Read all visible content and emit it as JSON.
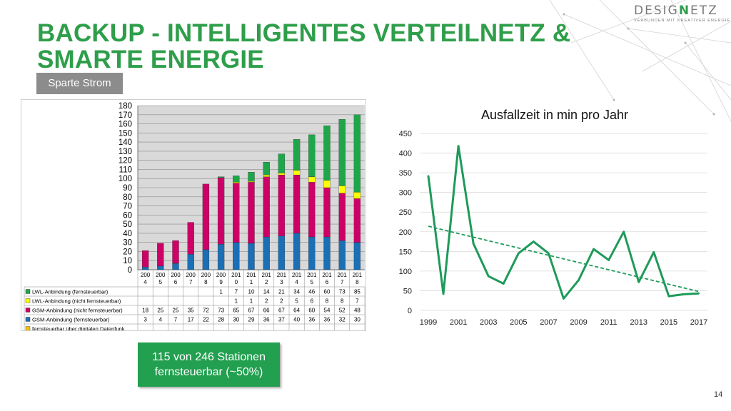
{
  "title_line1": "BACKUP - INTELLIGENTES VERTEILNETZ &",
  "title_line2": "SMARTE ENERGIE",
  "badge": "Sparte Strom",
  "logo": {
    "pre": "DESIG",
    "accent": "N",
    "post": "ETZ",
    "tagline": "VERBUNDEN MIT KREATIVER ENERGIE"
  },
  "callout_line1": "115 von 246 Stationen",
  "callout_line2": "fernsteuerbar (~50%)",
  "page_number": "14",
  "colors": {
    "title": "#2e9e4a",
    "lwl_fern": "#1fa64a",
    "lwl_nicht": "#ffff00",
    "gsm_nicht": "#cc0066",
    "gsm_fern": "#1a6fb5",
    "datenfunk": "#f2c300",
    "line": "#1e9a5a"
  },
  "chart_data": [
    {
      "type": "bar",
      "stacked": true,
      "categories": [
        [
          "200",
          "4"
        ],
        [
          "200",
          "5"
        ],
        [
          "200",
          "6"
        ],
        [
          "200",
          "7"
        ],
        [
          "200",
          "8"
        ],
        [
          "200",
          "9"
        ],
        [
          "201",
          "0"
        ],
        [
          "201",
          "1"
        ],
        [
          "201",
          "2"
        ],
        [
          "201",
          "3"
        ],
        [
          "201",
          "4"
        ],
        [
          "201",
          "5"
        ],
        [
          "201",
          "6"
        ],
        [
          "201",
          "7"
        ],
        [
          "201",
          "8"
        ]
      ],
      "ylim": [
        0,
        180
      ],
      "yticks": [
        0,
        10,
        20,
        30,
        40,
        50,
        60,
        70,
        80,
        90,
        100,
        110,
        120,
        130,
        140,
        150,
        160,
        170,
        180
      ],
      "grid": true,
      "legend": "table-bottom",
      "series": [
        {
          "name": "LWL-Anbindung (fernsteuerbar)",
          "color": "#1fa64a",
          "values": [
            null,
            null,
            null,
            null,
            null,
            1,
            7,
            10,
            14,
            21,
            34,
            46,
            60,
            73,
            85
          ]
        },
        {
          "name": "LWL-Anbindung (nicht fernsteuerbar)",
          "color": "#ffff00",
          "values": [
            null,
            null,
            null,
            null,
            null,
            null,
            1,
            1,
            2,
            2,
            5,
            6,
            8,
            8,
            7
          ]
        },
        {
          "name": "GSM-Anbindung (nicht fernsteuerbar)",
          "color": "#cc0066",
          "values": [
            18,
            25,
            25,
            35,
            72,
            73,
            65,
            67,
            66,
            67,
            64,
            60,
            54,
            52,
            48
          ]
        },
        {
          "name": "GSM-Anbindung (fernsteuerbar)",
          "color": "#1a6fb5",
          "values": [
            3,
            4,
            7,
            17,
            22,
            28,
            30,
            29,
            36,
            37,
            40,
            36,
            36,
            32,
            30
          ]
        },
        {
          "name": "fernsteuerbar über digitalen Datenfunk",
          "color": "#f2c300",
          "values": [
            null,
            null,
            null,
            null,
            null,
            null,
            null,
            null,
            null,
            null,
            null,
            null,
            null,
            null,
            null
          ]
        }
      ]
    },
    {
      "type": "line",
      "title": "Ausfallzeit in min pro Jahr",
      "x": [
        1999,
        2000,
        2001,
        2002,
        2003,
        2004,
        2005,
        2006,
        2007,
        2008,
        2009,
        2010,
        2011,
        2012,
        2013,
        2014,
        2015,
        2016,
        2017
      ],
      "xticks": [
        1999,
        2001,
        2003,
        2005,
        2007,
        2009,
        2011,
        2013,
        2015,
        2017
      ],
      "ylim": [
        0,
        450
      ],
      "yticks": [
        0,
        50,
        100,
        150,
        200,
        250,
        300,
        350,
        400,
        450
      ],
      "grid": true,
      "series": [
        {
          "values": [
            342,
            42,
            418,
            170,
            87,
            68,
            145,
            175,
            145,
            30,
            77,
            156,
            128,
            200,
            72,
            148,
            36,
            41,
            43
          ]
        }
      ],
      "trendline": {
        "style": "dashed",
        "from": [
          1999,
          214
        ],
        "to": [
          2017,
          48
        ]
      }
    }
  ]
}
